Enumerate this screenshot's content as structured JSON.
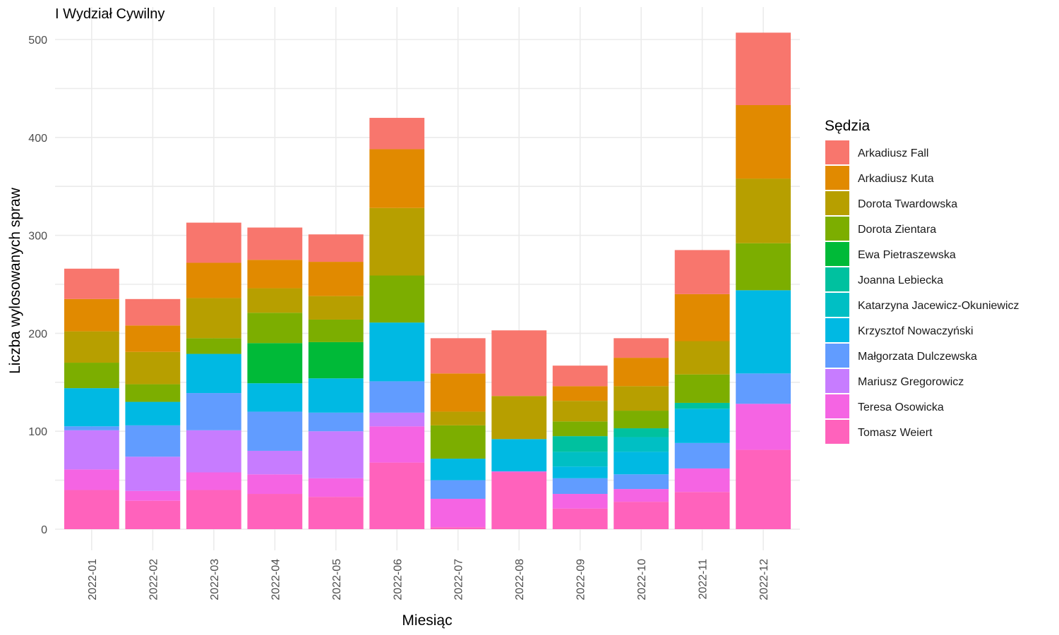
{
  "chart_data": {
    "type": "bar",
    "stacked": true,
    "title": "I Wydział Cywilny",
    "xlabel": "Miesiąc",
    "ylabel": "Liczba wylosowanych spraw",
    "ylim": [
      0,
      530
    ],
    "yticks": [
      0,
      100,
      200,
      300,
      400,
      500
    ],
    "grid": true,
    "legend_position": "right",
    "legend_title": "Sędzia",
    "categories": [
      "2022-01",
      "2022-02",
      "2022-03",
      "2022-04",
      "2022-05",
      "2022-06",
      "2022-07",
      "2022-08",
      "2022-09",
      "2022-10",
      "2022-11",
      "2022-12"
    ],
    "series": [
      {
        "name": "Tomasz Weiert",
        "color": "#FF62BC",
        "values": [
          40,
          29,
          40,
          36,
          33,
          68,
          2,
          58,
          21,
          28,
          38,
          81
        ]
      },
      {
        "name": "Teresa Osowicka",
        "color": "#F564E3",
        "values": [
          21,
          10,
          18,
          20,
          19,
          37,
          29,
          1,
          15,
          13,
          24,
          47
        ]
      },
      {
        "name": "Mariusz Gregorowicz",
        "color": "#C77CFF",
        "values": [
          40,
          35,
          43,
          24,
          48,
          14,
          0,
          0,
          0,
          0,
          0,
          0
        ]
      },
      {
        "name": "Małgorzata Dulczewska",
        "color": "#619CFF",
        "values": [
          4,
          32,
          38,
          40,
          19,
          32,
          19,
          0,
          16,
          15,
          26,
          31
        ]
      },
      {
        "name": "Krzysztof Nowaczyński",
        "color": "#00B9E3",
        "values": [
          39,
          24,
          40,
          29,
          35,
          60,
          22,
          33,
          12,
          23,
          35,
          85
        ]
      },
      {
        "name": "Katarzyna Jacewicz-Okuniewicz",
        "color": "#00BFC4",
        "values": [
          0,
          0,
          0,
          0,
          0,
          0,
          0,
          0,
          15,
          15,
          0,
          0
        ]
      },
      {
        "name": "Joanna Lebiecka",
        "color": "#00C19F",
        "values": [
          0,
          0,
          0,
          0,
          0,
          0,
          0,
          0,
          16,
          9,
          6,
          0
        ]
      },
      {
        "name": "Ewa Pietraszewska",
        "color": "#00BA38",
        "values": [
          0,
          0,
          0,
          41,
          37,
          0,
          0,
          0,
          0,
          0,
          0,
          0
        ]
      },
      {
        "name": "Dorota Zientara",
        "color": "#7CAE00",
        "values": [
          26,
          18,
          16,
          31,
          23,
          48,
          34,
          0,
          15,
          18,
          29,
          48
        ]
      },
      {
        "name": "Dorota Twardowska",
        "color": "#B79F00",
        "values": [
          32,
          33,
          41,
          25,
          24,
          69,
          14,
          44,
          21,
          25,
          34,
          66
        ]
      },
      {
        "name": "Arkadiusz Kuta",
        "color": "#E18A00",
        "values": [
          33,
          27,
          36,
          29,
          35,
          60,
          39,
          0,
          15,
          29,
          48,
          75
        ]
      },
      {
        "name": "Arkadiusz Fall",
        "color": "#F8766D",
        "values": [
          31,
          27,
          41,
          33,
          28,
          32,
          36,
          67,
          21,
          20,
          45,
          74
        ]
      }
    ]
  }
}
